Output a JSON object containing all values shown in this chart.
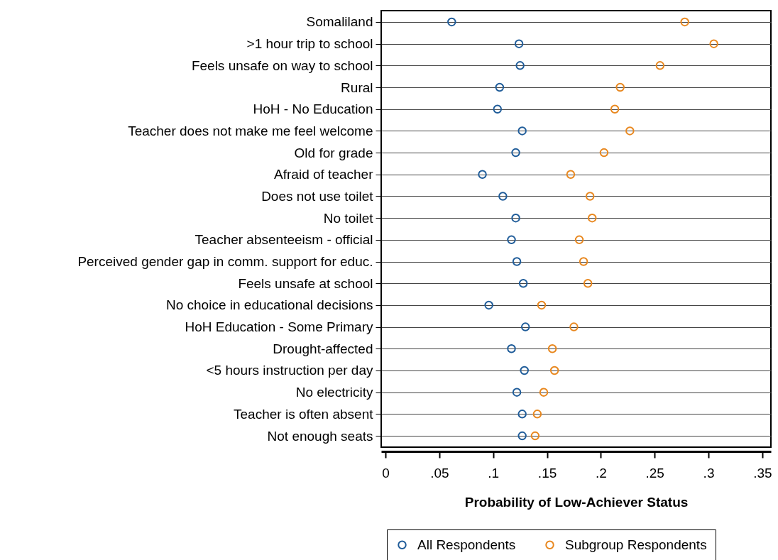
{
  "chart_data": {
    "type": "scatter",
    "orientation": "horizontal",
    "xlabel": "Probability of Low-Achiever Status",
    "categories": [
      "Somaliland",
      ">1 hour trip to school",
      "Feels unsafe on way to school",
      "Rural",
      "HoH - No Education",
      "Teacher does not make me feel welcome",
      "Old for grade",
      "Afraid of teacher",
      "Does not use toilet",
      "No toilet",
      "Teacher absenteeism - official",
      "Perceived gender gap in comm. support for educ.",
      "Feels unsafe at school",
      "No choice in educational decisions",
      "HoH Education - Some Primary",
      "Drought-affected",
      "<5 hours instruction per day",
      "No electricity",
      "Teacher is often absent",
      "Not enough seats"
    ],
    "series": [
      {
        "name": "All Respondents",
        "color": "#1f5c99",
        "values": [
          0.0615,
          0.124,
          0.125,
          0.106,
          0.104,
          0.127,
          0.121,
          0.09,
          0.109,
          0.121,
          0.117,
          0.122,
          0.128,
          0.096,
          0.13,
          0.117,
          0.129,
          0.122,
          0.127,
          0.127
        ]
      },
      {
        "name": "Subgroup Respondents",
        "color": "#e8871e",
        "values": [
          0.278,
          0.305,
          0.255,
          0.218,
          0.213,
          0.227,
          0.203,
          0.172,
          0.19,
          0.192,
          0.18,
          0.184,
          0.188,
          0.145,
          0.175,
          0.155,
          0.157,
          0.147,
          0.141,
          0.139
        ]
      }
    ],
    "xlim": [
      -0.004,
      0.358
    ],
    "xticks": [
      {
        "value": 0,
        "label": "0"
      },
      {
        "value": 0.05,
        "label": ".05"
      },
      {
        "value": 0.1,
        "label": ".1"
      },
      {
        "value": 0.15,
        "label": ".15"
      },
      {
        "value": 0.2,
        "label": ".2"
      },
      {
        "value": 0.25,
        "label": ".25"
      },
      {
        "value": 0.3,
        "label": ".3"
      },
      {
        "value": 0.35,
        "label": ".35"
      }
    ],
    "grid": "y",
    "legend": "bottom",
    "marker": "circle"
  }
}
